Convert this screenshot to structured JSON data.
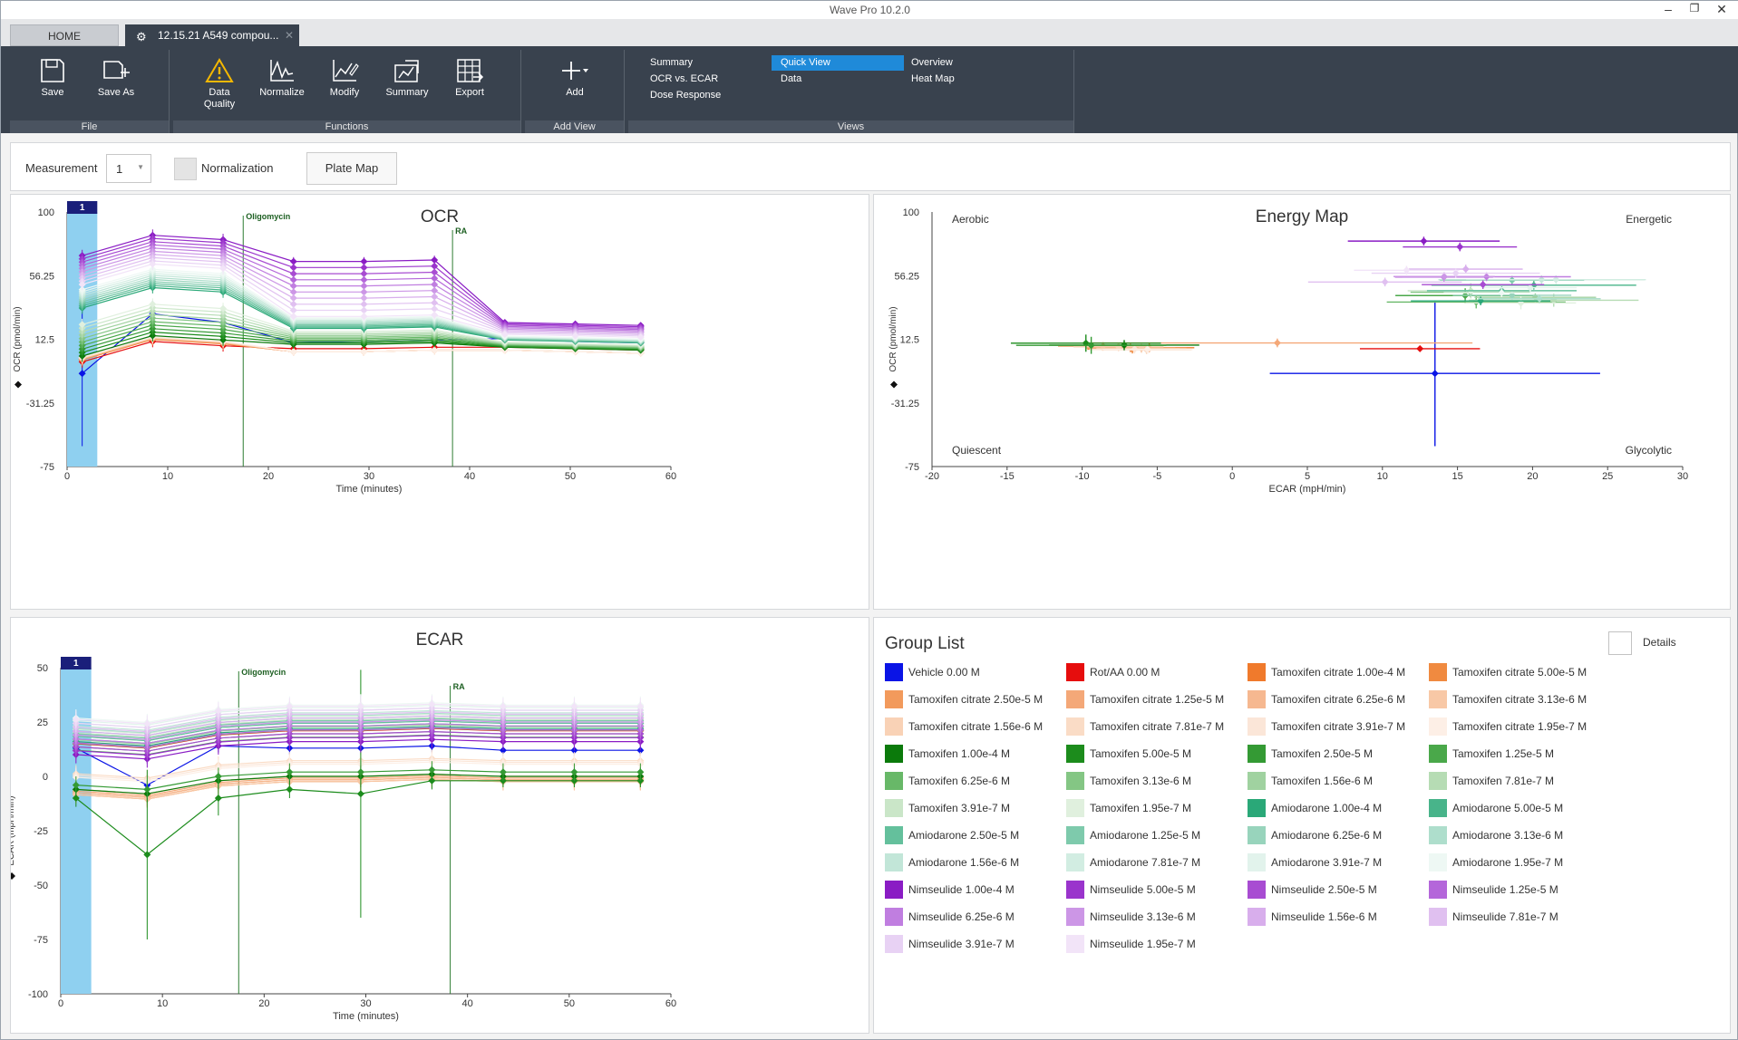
{
  "window": {
    "title": "Wave Pro 10.2.0"
  },
  "tabs": {
    "home": "HOME",
    "file": "12.15.21 A549 compou..."
  },
  "ribbon": {
    "groups": {
      "file": "File",
      "functions": "Functions",
      "add_view": "Add View",
      "views": "Views"
    },
    "save": "Save",
    "save_as": "Save As",
    "data_quality": "Data Quality",
    "normalize": "Normalize",
    "modify": "Modify",
    "summary": "Summary",
    "export": "Export",
    "add": "Add",
    "views_col1": [
      "Summary",
      "OCR vs. ECAR",
      "Dose Response"
    ],
    "views_col2": [
      "Quick View",
      "Data"
    ],
    "views_col3": [
      "Overview",
      "Heat Map"
    ],
    "selected_view": "Quick View"
  },
  "controls": {
    "measurement_label": "Measurement",
    "measurement_value": "1",
    "normalization_label": "Normalization",
    "plate_map_label": "Plate Map"
  },
  "ocr": {
    "title": "OCR",
    "ylabel": "OCR (pmol/min)",
    "xlabel": "Time (minutes)",
    "y_ticks": [
      "100",
      "56.25",
      "12.5",
      "-31.25",
      "-75"
    ],
    "x_ticks": [
      "0",
      "10",
      "20",
      "30",
      "40",
      "50",
      "60"
    ],
    "marker": "1",
    "injections": [
      "Oligomycin",
      "RA"
    ]
  },
  "ecar": {
    "title": "ECAR",
    "ylabel": "ECAR (mpH/min)",
    "xlabel": "Time (minutes)",
    "y_ticks": [
      "50",
      "25",
      "0",
      "-25",
      "-50",
      "-75",
      "-100"
    ],
    "x_ticks": [
      "0",
      "10",
      "20",
      "30",
      "40",
      "50",
      "60"
    ],
    "marker": "1",
    "injections": [
      "Oligomycin",
      "RA"
    ]
  },
  "energy": {
    "title": "Energy Map",
    "ylabel": "OCR (pmol/min)",
    "xlabel": "ECAR (mpH/min)",
    "y_ticks": [
      "100",
      "56.25",
      "12.5",
      "-31.25",
      "-75"
    ],
    "x_ticks": [
      "-20",
      "-15",
      "-10",
      "-5",
      "0",
      "5",
      "10",
      "15",
      "20",
      "25",
      "30"
    ],
    "quadrants": [
      "Aerobic",
      "Energetic",
      "Quiescent",
      "Glycolytic"
    ]
  },
  "group_list": {
    "title": "Group List",
    "details_label": "Details",
    "items": [
      {
        "name": "Vehicle 0.00 M",
        "color": "#0a14e6"
      },
      {
        "name": "Rot/AA 0.00 M",
        "color": "#e60d0d"
      },
      {
        "name": "Tamoxifen citrate 1.00e-4 M",
        "color": "#f07a2c"
      },
      {
        "name": "Tamoxifen citrate 5.00e-5 M",
        "color": "#f08a40"
      },
      {
        "name": "Tamoxifen citrate 2.50e-5 M",
        "color": "#f29a5c"
      },
      {
        "name": "Tamoxifen citrate 1.25e-5 M",
        "color": "#f4a878"
      },
      {
        "name": "Tamoxifen citrate 6.25e-6 M",
        "color": "#f6b890"
      },
      {
        "name": "Tamoxifen citrate 3.13e-6 M",
        "color": "#f8c8a6"
      },
      {
        "name": "Tamoxifen citrate 1.56e-6 M",
        "color": "#f9d2b6"
      },
      {
        "name": "Tamoxifen citrate 7.81e-7 M",
        "color": "#fadcc6"
      },
      {
        "name": "Tamoxifen citrate 3.91e-7 M",
        "color": "#fbe6d8"
      },
      {
        "name": "Tamoxifen citrate 1.95e-7 M",
        "color": "#fdefe6"
      },
      {
        "name": "Tamoxifen 1.00e-4 M",
        "color": "#0b7a0b"
      },
      {
        "name": "Tamoxifen 5.00e-5 M",
        "color": "#1c8c1c"
      },
      {
        "name": "Tamoxifen 2.50e-5 M",
        "color": "#349a34"
      },
      {
        "name": "Tamoxifen 1.25e-5 M",
        "color": "#4aa84a"
      },
      {
        "name": "Tamoxifen 6.25e-6 M",
        "color": "#68b868"
      },
      {
        "name": "Tamoxifen 3.13e-6 M",
        "color": "#84c684"
      },
      {
        "name": "Tamoxifen 1.56e-6 M",
        "color": "#a0d2a0"
      },
      {
        "name": "Tamoxifen 7.81e-7 M",
        "color": "#b6dcb4"
      },
      {
        "name": "Tamoxifen 3.91e-7 M",
        "color": "#cae6c8"
      },
      {
        "name": "Tamoxifen 1.95e-7 M",
        "color": "#e0f0de"
      },
      {
        "name": "Amiodarone 1.00e-4 M",
        "color": "#2aa878"
      },
      {
        "name": "Amiodarone 5.00e-5 M",
        "color": "#48b48a"
      },
      {
        "name": "Amiodarone 2.50e-5 M",
        "color": "#64c09c"
      },
      {
        "name": "Amiodarone 1.25e-5 M",
        "color": "#7ecaac"
      },
      {
        "name": "Amiodarone 6.25e-6 M",
        "color": "#98d4bc"
      },
      {
        "name": "Amiodarone 3.13e-6 M",
        "color": "#aedecc"
      },
      {
        "name": "Amiodarone 1.56e-6 M",
        "color": "#c2e6d8"
      },
      {
        "name": "Amiodarone 7.81e-7 M",
        "color": "#d2ede2"
      },
      {
        "name": "Amiodarone 3.91e-7 M",
        "color": "#e2f3ec"
      },
      {
        "name": "Amiodarone 1.95e-7 M",
        "color": "#eef8f4"
      },
      {
        "name": "Nimseulide 1.00e-4 M",
        "color": "#8a1cc4"
      },
      {
        "name": "Nimseulide 5.00e-5 M",
        "color": "#9a34cc"
      },
      {
        "name": "Nimseulide 2.50e-5 M",
        "color": "#a84cd2"
      },
      {
        "name": "Nimseulide 1.25e-5 M",
        "color": "#b466da"
      },
      {
        "name": "Nimseulide 6.25e-6 M",
        "color": "#c07ee0"
      },
      {
        "name": "Nimseulide 3.13e-6 M",
        "color": "#cc96e6"
      },
      {
        "name": "Nimseulide 1.56e-6 M",
        "color": "#d8aeec"
      },
      {
        "name": "Nimseulide 7.81e-7 M",
        "color": "#e0c0f0"
      },
      {
        "name": "Nimseulide 3.91e-7 M",
        "color": "#e8d2f4"
      },
      {
        "name": "Nimseulide 1.95e-7 M",
        "color": "#f2e4f8"
      }
    ]
  }
}
